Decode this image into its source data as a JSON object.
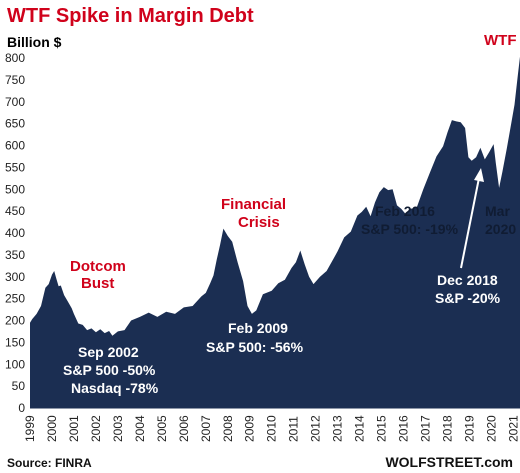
{
  "chart_data": {
    "type": "area",
    "title": "WTF Spike in Margin Debt",
    "ylabel": "Billion $",
    "ylim": [
      0,
      800
    ],
    "yticks": [
      0,
      50,
      100,
      150,
      200,
      250,
      300,
      350,
      400,
      450,
      500,
      550,
      600,
      650,
      700,
      750,
      800
    ],
    "xlim": [
      1999.0,
      2021.3
    ],
    "xticks": [
      "1999",
      "2000",
      "2001",
      "2002",
      "2003",
      "2004",
      "2005",
      "2006",
      "2007",
      "2008",
      "2009",
      "2010",
      "2011",
      "2012",
      "2013",
      "2014",
      "2015",
      "2016",
      "2017",
      "2018",
      "2019",
      "2020",
      "2021"
    ],
    "grid": false,
    "series": [
      {
        "color": "#1b2e52",
        "x": [
          1999.0,
          1999.1,
          1999.3,
          1999.5,
          1999.7,
          1999.85,
          2000.0,
          2000.1,
          2000.2,
          2000.3,
          2000.4,
          2000.55,
          2000.7,
          2000.9,
          2001.0,
          2001.2,
          2001.4,
          2001.6,
          2001.8,
          2002.0,
          2002.2,
          2002.4,
          2002.6,
          2002.75,
          2003.0,
          2003.3,
          2003.6,
          2004.0,
          2004.4,
          2004.8,
          2005.2,
          2005.6,
          2006.0,
          2006.4,
          2006.8,
          2007.0,
          2007.2,
          2007.35,
          2007.5,
          2007.65,
          2007.8,
          2008.0,
          2008.2,
          2008.45,
          2008.7,
          2008.9,
          2009.1,
          2009.3,
          2009.6,
          2010.0,
          2010.3,
          2010.6,
          2010.9,
          2011.1,
          2011.3,
          2011.5,
          2011.7,
          2011.9,
          2012.2,
          2012.5,
          2012.8,
          2013.0,
          2013.3,
          2013.6,
          2013.9,
          2014.1,
          2014.3,
          2014.5,
          2014.7,
          2014.9,
          2015.1,
          2015.3,
          2015.5,
          2015.7,
          2015.9,
          2016.1,
          2016.3,
          2016.6,
          2016.9,
          2017.2,
          2017.5,
          2017.8,
          2018.0,
          2018.2,
          2018.4,
          2018.6,
          2018.8,
          2018.95,
          2019.1,
          2019.3,
          2019.5,
          2019.7,
          2019.9,
          2020.1,
          2020.2,
          2020.35,
          2020.5,
          2020.7,
          2020.9,
          2021.05,
          2021.2,
          2021.3
        ],
        "values": [
          195,
          210,
          215,
          240,
          275,
          290,
          305,
          320,
          295,
          285,
          280,
          265,
          245,
          235,
          215,
          200,
          190,
          185,
          182,
          180,
          180,
          178,
          176,
          172,
          175,
          185,
          200,
          215,
          218,
          215,
          220,
          222,
          230,
          240,
          255,
          270,
          285,
          310,
          340,
          380,
          410,
          400,
          380,
          340,
          290,
          240,
          215,
          230,
          260,
          275,
          285,
          300,
          320,
          340,
          360,
          335,
          300,
          290,
          300,
          320,
          340,
          365,
          390,
          410,
          440,
          455,
          460,
          445,
          470,
          500,
          505,
          505,
          500,
          470,
          455,
          450,
          455,
          465,
          500,
          545,
          575,
          605,
          630,
          665,
          655,
          660,
          640,
          580,
          565,
          580,
          595,
          575,
          585,
          610,
          560,
          510,
          540,
          600,
          650,
          700,
          760,
          810
        ]
      }
    ],
    "annotations": {
      "wtf": "WTF",
      "dotcom": [
        "Dotcom",
        "Bust"
      ],
      "financial": [
        "Financial",
        "Crisis"
      ],
      "feb2016": [
        "Feb 2016",
        "S&P 500: -19%"
      ],
      "mar2020": [
        "Mar",
        "2020"
      ],
      "dec2018": [
        "Dec 2018",
        "S&P -20%"
      ],
      "feb2009": [
        "Feb  2009",
        "S&P 500: -56%"
      ],
      "sep2002": [
        "Sep 2002",
        "S&P 500 -50%",
        "Nasdaq -78%"
      ]
    },
    "source": "Source: FINRA",
    "brand": "WOLFSTREET.com"
  }
}
